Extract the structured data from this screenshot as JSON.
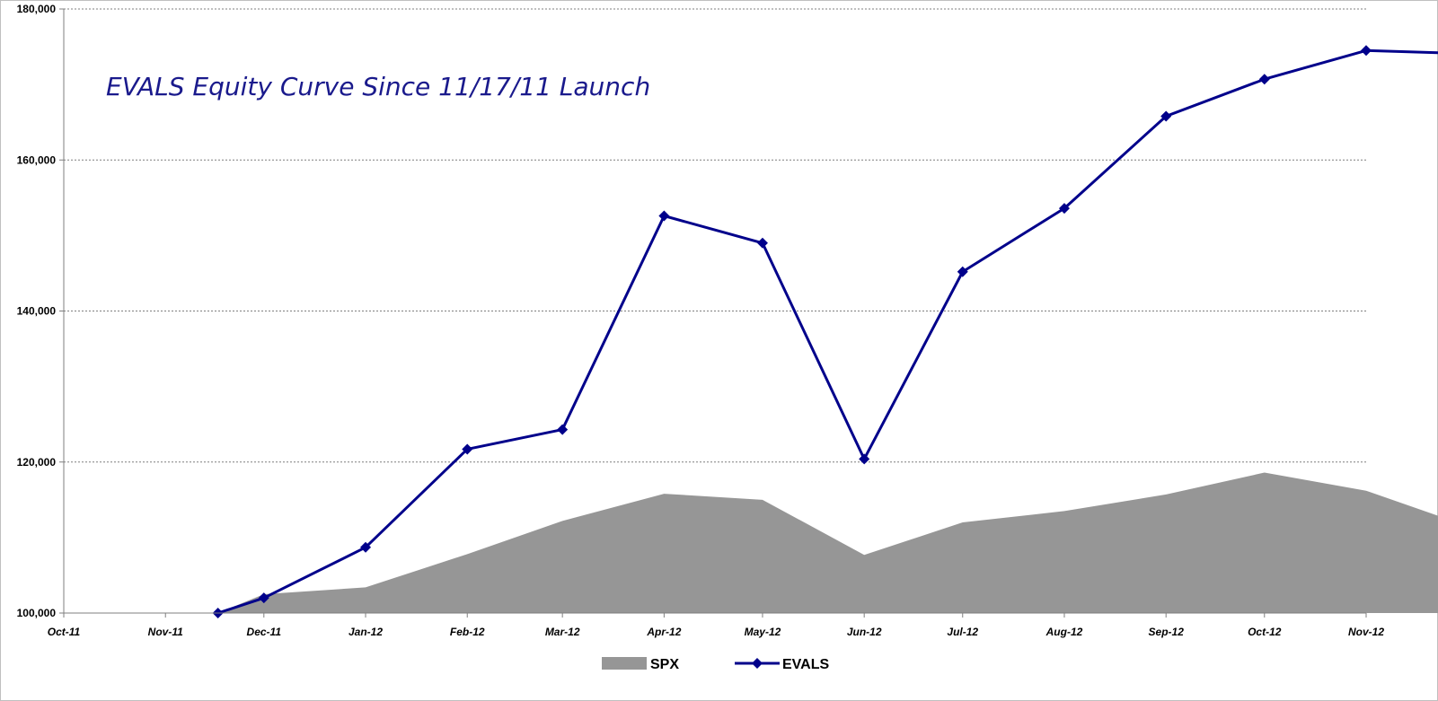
{
  "chart_data": {
    "type": "line",
    "title": "EVALS Equity Curve Since 11/17/11 Launch",
    "xlabel": "",
    "ylabel": "",
    "ylim": [
      100000,
      180000
    ],
    "yticks": [
      100000,
      120000,
      140000,
      160000,
      180000
    ],
    "ytick_labels": [
      "100,000",
      "120,000",
      "140,000",
      "160,000",
      "180,000"
    ],
    "xticks": [
      "Oct-11",
      "Nov-11",
      "Dec-11",
      "Jan-12",
      "Feb-12",
      "Mar-12",
      "Apr-12",
      "May-12",
      "Jun-12",
      "Jul-12",
      "Aug-12",
      "Sep-12",
      "Oct-12",
      "Nov-12"
    ],
    "x_range": [
      "2011-10-01",
      "2012-11-01"
    ],
    "grid": "horizontal dotted",
    "legend_position": "bottom",
    "series": [
      {
        "name": "SPX",
        "type": "area",
        "color": "#969696",
        "x": [
          "2011-11-17",
          "2011-12-01",
          "2012-01-01",
          "2012-02-01",
          "2012-03-01",
          "2012-04-01",
          "2012-05-01",
          "2012-06-01",
          "2012-07-01",
          "2012-08-01",
          "2012-09-01",
          "2012-10-01",
          "2012-11-01",
          "2012-11-30"
        ],
        "values": [
          100000,
          102500,
          103400,
          107800,
          112200,
          115800,
          115000,
          107700,
          112000,
          113500,
          115700,
          118600,
          116200,
          111800
        ]
      },
      {
        "name": "EVALS",
        "type": "line",
        "marker": "diamond",
        "color": "#00008b",
        "x": [
          "2011-11-17",
          "2011-12-01",
          "2012-01-01",
          "2012-02-01",
          "2012-03-01",
          "2012-04-01",
          "2012-05-01",
          "2012-06-01",
          "2012-07-01",
          "2012-08-01",
          "2012-09-01",
          "2012-10-01",
          "2012-11-01",
          "2012-11-30"
        ],
        "values": [
          100000,
          102000,
          108700,
          121700,
          124300,
          152600,
          149000,
          120400,
          145200,
          153600,
          165800,
          170700,
          174500,
          174100
        ]
      }
    ]
  }
}
